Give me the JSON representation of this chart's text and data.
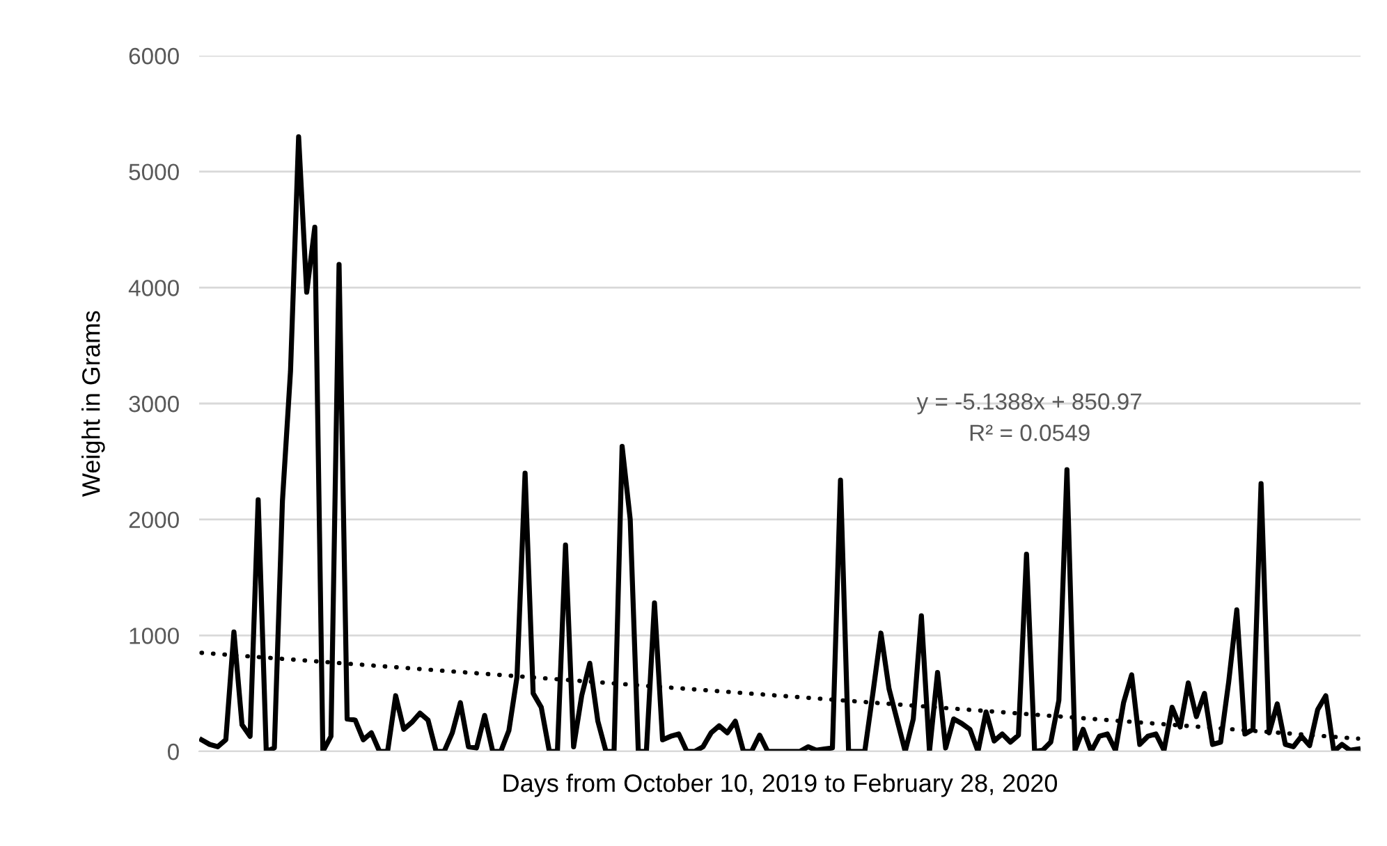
{
  "chart_data": {
    "type": "line",
    "xlabel": "Days from October 10, 2019 to February 28, 2020",
    "ylabel": "Weight in Grams",
    "categories": [
      null,
      null,
      null,
      null,
      null,
      null,
      null,
      null,
      null,
      null,
      null,
      null,
      null,
      null,
      null,
      null,
      null,
      null,
      null,
      null,
      null,
      null,
      null,
      null,
      null,
      null,
      null,
      null,
      null,
      null,
      null,
      null,
      null,
      null,
      null,
      null,
      null,
      null,
      null,
      null,
      null,
      null,
      null,
      null,
      null,
      null,
      null,
      null,
      null,
      null,
      null,
      null,
      null,
      null,
      null,
      null,
      null,
      null,
      null,
      null,
      null,
      null,
      null,
      null,
      null,
      null,
      null,
      null,
      null,
      null,
      null,
      null,
      null,
      null,
      null,
      null,
      null,
      null,
      null,
      null,
      null,
      null,
      null,
      null,
      null,
      null,
      null,
      null,
      null,
      null,
      null,
      null,
      null,
      null,
      null,
      null,
      null,
      null,
      null,
      null,
      null,
      null,
      null,
      null,
      null,
      null,
      null,
      null,
      null,
      null,
      null,
      null,
      null,
      null,
      null,
      null,
      null,
      null,
      null,
      null,
      null,
      null,
      null,
      null,
      null,
      null,
      null,
      null,
      null,
      null,
      null,
      null,
      null,
      null,
      null,
      null,
      null,
      null,
      null,
      null,
      null,
      null,
      null,
      null
    ],
    "series": [
      {
        "color": "#000000",
        "values": [
          100,
          60,
          40,
          100,
          1030,
          230,
          130,
          2170,
          0,
          30,
          2160,
          3280,
          5300,
          3960,
          4520,
          0,
          130,
          4200,
          280,
          270,
          100,
          160,
          0,
          0,
          480,
          190,
          250,
          330,
          270,
          0,
          0,
          160,
          420,
          40,
          30,
          310,
          0,
          0,
          180,
          640,
          2400,
          500,
          380,
          0,
          0,
          1780,
          40,
          480,
          760,
          260,
          0,
          0,
          2630,
          2000,
          0,
          0,
          1280,
          100,
          130,
          150,
          0,
          0,
          40,
          160,
          220,
          160,
          260,
          0,
          0,
          140,
          0,
          0,
          0,
          0,
          0,
          40,
          10,
          20,
          30,
          2340,
          0,
          0,
          0,
          500,
          1020,
          540,
          270,
          0,
          280,
          1170,
          0,
          680,
          30,
          280,
          240,
          190,
          0,
          340,
          90,
          150,
          80,
          140,
          1700,
          0,
          10,
          80,
          440,
          2430,
          10,
          190,
          0,
          130,
          150,
          10,
          420,
          660,
          60,
          130,
          150,
          10,
          380,
          210,
          590,
          300,
          500,
          60,
          80,
          600,
          1220,
          150,
          190,
          2310,
          160,
          410,
          60,
          40,
          130,
          50,
          360,
          480,
          0,
          60,
          10,
          20
        ]
      },
      {
        "type": "line",
        "color": "#000000",
        "line_style": "dotted",
        "values": [
          850,
          null,
          null,
          null,
          null,
          null,
          null,
          null,
          null,
          null,
          null,
          null,
          null,
          null,
          null,
          null,
          null,
          null,
          null,
          null,
          null,
          null,
          null,
          null,
          null,
          null,
          null,
          null,
          null,
          null,
          null,
          null,
          null,
          null,
          null,
          null,
          null,
          null,
          null,
          null,
          null,
          null,
          null,
          null,
          null,
          null,
          null,
          null,
          null,
          null,
          null,
          null,
          null,
          null,
          null,
          null,
          null,
          null,
          null,
          null,
          null,
          null,
          null,
          null,
          null,
          null,
          null,
          null,
          null,
          null,
          null,
          null,
          null,
          null,
          null,
          null,
          null,
          null,
          null,
          null,
          null,
          null,
          null,
          null,
          null,
          null,
          null,
          null,
          null,
          null,
          null,
          null,
          null,
          null,
          null,
          null,
          null,
          null,
          null,
          null,
          null,
          null,
          null,
          null,
          null,
          null,
          null,
          null,
          null,
          null,
          null,
          null,
          null,
          null,
          null,
          null,
          null,
          null,
          null,
          null,
          null,
          null,
          null,
          null,
          null,
          null,
          null,
          null,
          null,
          null,
          null,
          null,
          null,
          null,
          null,
          null,
          null,
          null,
          null,
          null,
          null,
          null,
          null,
          110
        ]
      }
    ],
    "ylim": [
      0,
      6000
    ],
    "yticks": [
      0,
      1000,
      2000,
      3000,
      4000,
      5000,
      6000
    ],
    "grid": "y",
    "legend": false,
    "marker": "none",
    "line_style": "solid",
    "annotations": [
      "y = -5.1388x + 850.97",
      "R² = 0.0549"
    ]
  }
}
